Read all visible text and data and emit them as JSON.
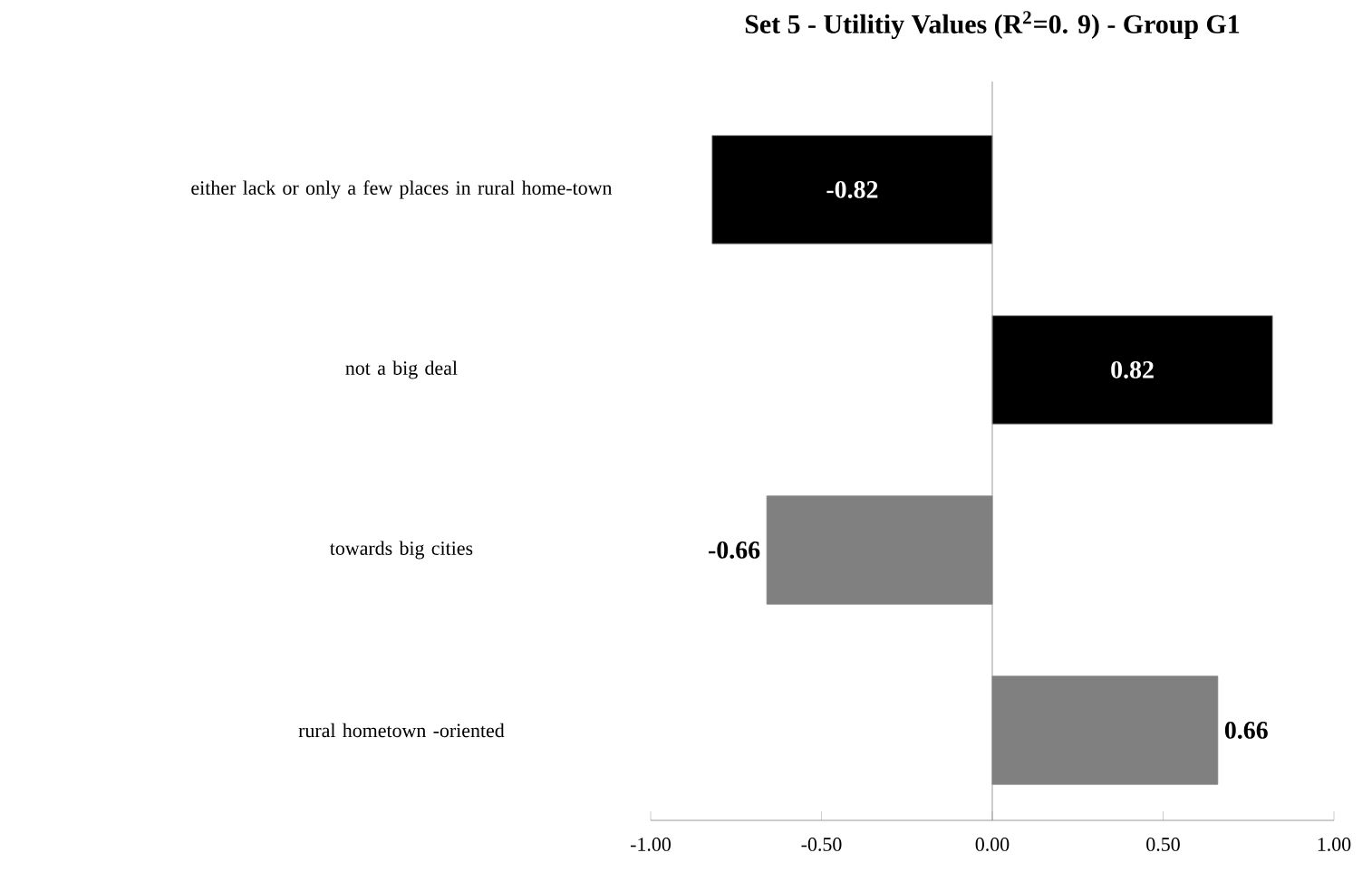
{
  "chart_data": {
    "type": "bar",
    "orientation": "horizontal",
    "title": "Set 5 - Utilitiy Values (R$^{2}$=0. 9) - Group G1",
    "categories": [
      "either lack or only a few places in rural home-town",
      "not a big deal",
      "towards big cities",
      "rural hometown -oriented"
    ],
    "values": [
      -0.82,
      0.82,
      -0.66,
      0.66
    ],
    "colors": [
      "#000000",
      "#000000",
      "#808080",
      "#808080"
    ],
    "xlim": [
      -1.0,
      1.0
    ],
    "xticks": [
      {
        "value": -1.0,
        "label": "-1.00"
      },
      {
        "value": -0.5,
        "label": "-0.50"
      },
      {
        "value": 0.0,
        "label": "0.00"
      },
      {
        "value": 0.5,
        "label": "0.50"
      },
      {
        "value": 1.0,
        "label": "1.00"
      }
    ],
    "data_labels": true
  }
}
